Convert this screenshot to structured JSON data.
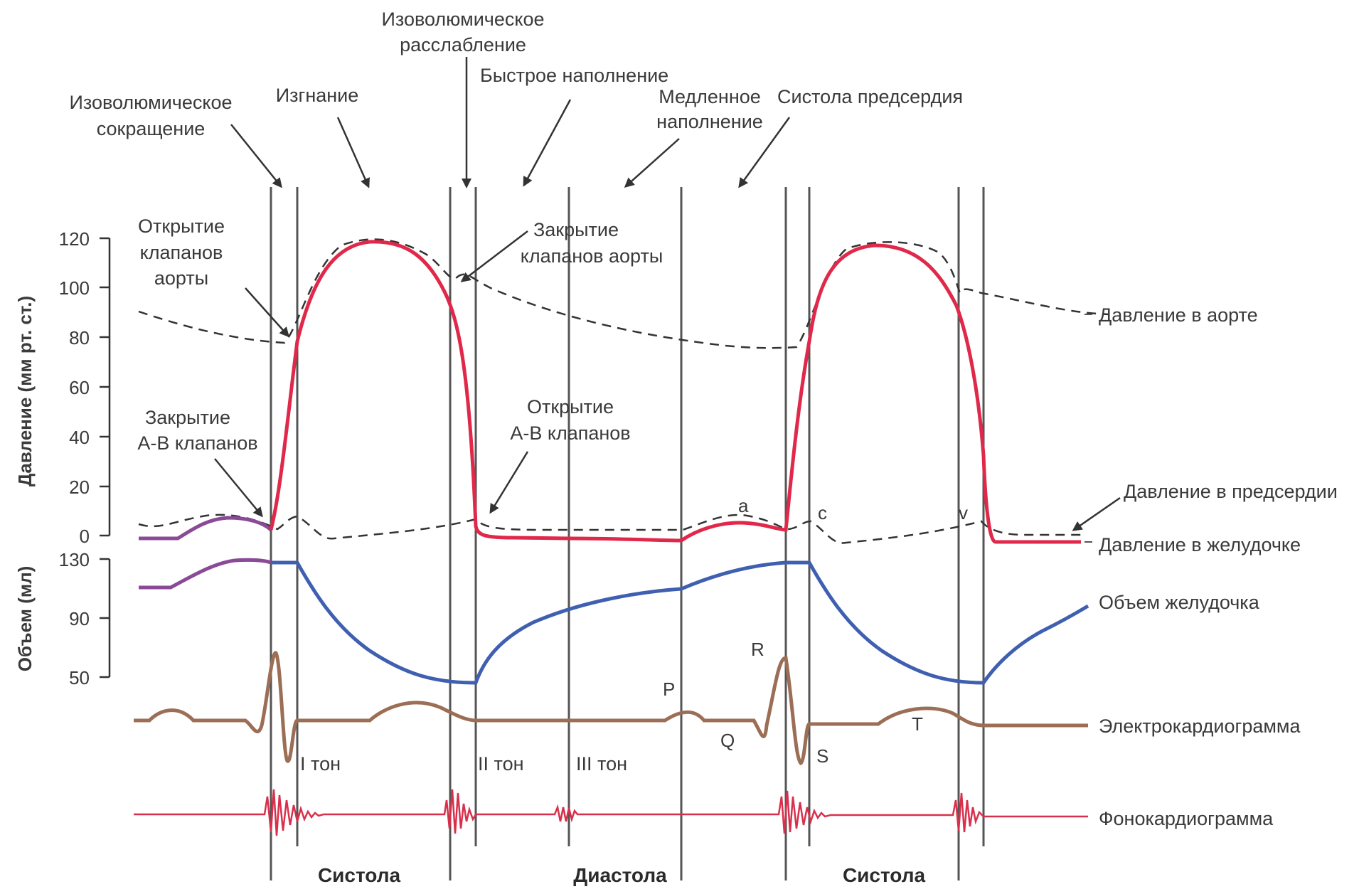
{
  "labels": {
    "isovol_contraction_1": "Изоволюмическое",
    "isovol_contraction_2": "сокращение",
    "ejection": "Изгнание",
    "isovol_relax_1": "Изоволюмическое",
    "isovol_relax_2": "расслабление",
    "rapid_fill": "Быстрое наполнение",
    "slow_fill_1": "Медленное",
    "slow_fill_2": "наполнение",
    "atrial_systole": "Систола предсердия",
    "aortic_open_1": "Открытие",
    "aortic_open_2": "клапанов",
    "aortic_open_3": "аорты",
    "aortic_close_1": "Закрытие",
    "aortic_close_2": "клапанов аорты",
    "av_close_1": "Закрытие",
    "av_close_2": "А-В клапанов",
    "av_open_1": "Открытие",
    "av_open_2": "А-В клапанов"
  },
  "axes": {
    "pressure_title": "Давление (мм рт. ст.)",
    "volume_title": "Объем (мл)",
    "pressure_ticks": [
      "120",
      "100",
      "80",
      "60",
      "40",
      "20",
      "0"
    ],
    "volume_ticks": [
      "130",
      "90",
      "50"
    ]
  },
  "curves": {
    "aortic_pressure": "Давление в аорте",
    "atrial_pressure": "Давление в предсердии",
    "ventricular_pressure": "Давление в желудочке",
    "ventricular_volume": "Объем желудочка",
    "ecg": "Электрокардиограмма",
    "pcg": "Фонокардиограмма"
  },
  "waves": {
    "a": "a",
    "c": "c",
    "v": "v",
    "P": "P",
    "Q": "Q",
    "R": "R",
    "S": "S",
    "T": "T"
  },
  "heart_sounds": {
    "s1": "I тон",
    "s2": "II тон",
    "s3": "III тон"
  },
  "phases": {
    "systole_1": "Систола",
    "diastole": "Диастола",
    "systole_2": "Систола"
  },
  "colors": {
    "ventricular_pressure": "#e0284a",
    "aortic_pressure": "#333333",
    "volume": "#3f5fb0",
    "ecg": "#9b6e55",
    "pcg": "#d8304c",
    "purple": "#8a4a98",
    "guide_lines": "#555555"
  }
}
